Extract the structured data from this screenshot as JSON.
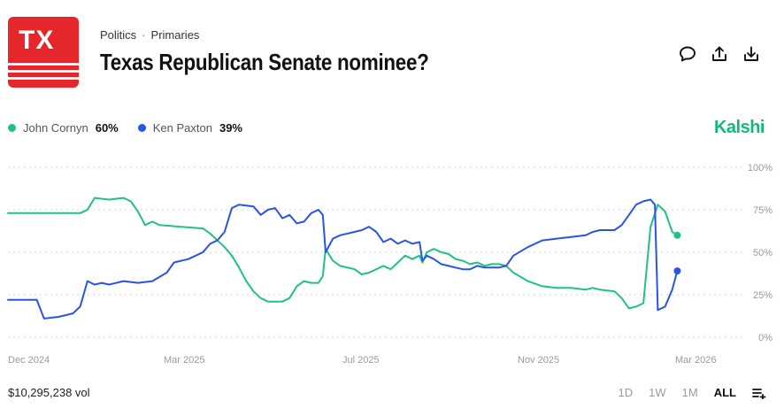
{
  "header": {
    "logo_text": "TX",
    "breadcrumb": [
      "Politics",
      "Primaries"
    ],
    "title": "Texas Republican Senate nominee?"
  },
  "actions": [
    {
      "name": "comment-icon"
    },
    {
      "name": "share-icon"
    },
    {
      "name": "download-icon"
    }
  ],
  "brand": "Kalshi",
  "footer": {
    "volume": "$10,295,238 vol",
    "ranges": [
      "1D",
      "1W",
      "1M",
      "ALL"
    ],
    "active_range": "ALL"
  },
  "chart_data": {
    "type": "line",
    "xlabels": [
      "Dec 2024",
      "Mar 2025",
      "Jul 2025",
      "Nov 2025",
      "Mar 2026"
    ],
    "y_ticks": [
      "100%",
      "75%",
      "50%",
      "25%",
      "0%"
    ],
    "ylim": [
      0,
      100
    ],
    "grid": true,
    "legend_position": "top-left",
    "series": [
      {
        "name": "John Cornyn",
        "label": "60%",
        "color": "#1fc283",
        "points": [
          [
            0,
            73
          ],
          [
            10,
            73
          ],
          [
            11,
            75
          ],
          [
            12,
            82
          ],
          [
            14,
            81
          ],
          [
            16,
            82
          ],
          [
            17,
            80
          ],
          [
            18,
            74
          ],
          [
            19,
            66
          ],
          [
            20,
            68
          ],
          [
            21,
            66
          ],
          [
            24,
            65
          ],
          [
            27,
            64
          ],
          [
            28,
            61
          ],
          [
            30,
            53
          ],
          [
            31,
            48
          ],
          [
            32,
            41
          ],
          [
            33,
            33
          ],
          [
            34,
            27
          ],
          [
            35,
            23
          ],
          [
            36,
            21
          ],
          [
            38,
            21
          ],
          [
            39,
            23
          ],
          [
            40,
            30
          ],
          [
            41,
            33
          ],
          [
            42,
            32
          ],
          [
            43,
            32
          ],
          [
            43.6,
            36
          ],
          [
            44,
            52
          ],
          [
            45,
            45
          ],
          [
            46,
            42
          ],
          [
            48,
            40
          ],
          [
            49,
            37
          ],
          [
            50,
            38
          ],
          [
            51,
            40
          ],
          [
            52,
            42
          ],
          [
            53,
            40
          ],
          [
            54,
            44
          ],
          [
            55,
            48
          ],
          [
            56,
            46
          ],
          [
            57,
            48
          ],
          [
            57.4,
            44
          ],
          [
            58,
            50
          ],
          [
            59,
            52
          ],
          [
            60,
            50
          ],
          [
            61,
            49
          ],
          [
            62,
            46
          ],
          [
            63,
            45
          ],
          [
            64,
            43
          ],
          [
            65,
            44
          ],
          [
            66,
            42
          ],
          [
            67,
            43
          ],
          [
            68,
            43
          ],
          [
            69,
            42
          ],
          [
            70,
            38
          ],
          [
            72,
            33
          ],
          [
            74,
            30
          ],
          [
            76,
            29
          ],
          [
            78,
            29
          ],
          [
            80,
            28
          ],
          [
            81,
            29
          ],
          [
            82,
            28
          ],
          [
            84,
            27
          ],
          [
            85,
            23
          ],
          [
            86,
            17
          ],
          [
            87,
            18
          ],
          [
            88,
            20
          ],
          [
            89,
            65
          ],
          [
            90,
            78
          ],
          [
            91,
            74
          ],
          [
            92,
            62
          ],
          [
            92.7,
            60
          ]
        ]
      },
      {
        "name": "Ken Paxton",
        "label": "39%",
        "color": "#2b53e6",
        "points": [
          [
            0,
            22
          ],
          [
            3,
            22
          ],
          [
            4,
            22
          ],
          [
            5,
            11
          ],
          [
            7,
            12
          ],
          [
            9,
            14
          ],
          [
            10,
            18
          ],
          [
            11,
            33
          ],
          [
            12,
            31
          ],
          [
            13,
            32
          ],
          [
            14,
            31
          ],
          [
            16,
            33
          ],
          [
            18,
            32
          ],
          [
            20,
            33
          ],
          [
            22,
            38
          ],
          [
            23,
            44
          ],
          [
            25,
            46
          ],
          [
            26,
            48
          ],
          [
            27,
            50
          ],
          [
            28,
            55
          ],
          [
            29,
            57
          ],
          [
            30,
            62
          ],
          [
            31,
            76
          ],
          [
            32,
            78
          ],
          [
            34,
            77
          ],
          [
            35,
            72
          ],
          [
            36,
            75
          ],
          [
            37,
            76
          ],
          [
            38,
            70
          ],
          [
            39,
            72
          ],
          [
            40,
            67
          ],
          [
            41,
            68
          ],
          [
            42,
            73
          ],
          [
            43,
            75
          ],
          [
            43.6,
            72
          ],
          [
            44,
            50
          ],
          [
            45,
            58
          ],
          [
            46,
            60
          ],
          [
            48,
            62
          ],
          [
            49,
            63
          ],
          [
            50,
            65
          ],
          [
            51,
            62
          ],
          [
            52,
            56
          ],
          [
            53,
            58
          ],
          [
            54,
            55
          ],
          [
            55,
            57
          ],
          [
            56,
            55
          ],
          [
            57,
            56
          ],
          [
            57.4,
            45
          ],
          [
            58,
            48
          ],
          [
            59,
            46
          ],
          [
            60,
            43
          ],
          [
            61,
            42
          ],
          [
            62,
            41
          ],
          [
            63,
            40
          ],
          [
            64,
            40
          ],
          [
            65,
            42
          ],
          [
            66,
            41
          ],
          [
            67,
            41
          ],
          [
            68,
            41
          ],
          [
            69,
            42
          ],
          [
            70,
            48
          ],
          [
            72,
            53
          ],
          [
            74,
            57
          ],
          [
            76,
            58
          ],
          [
            78,
            59
          ],
          [
            80,
            60
          ],
          [
            81,
            62
          ],
          [
            82,
            63
          ],
          [
            84,
            63
          ],
          [
            85,
            66
          ],
          [
            86,
            72
          ],
          [
            87,
            78
          ],
          [
            88,
            80
          ],
          [
            89,
            81
          ],
          [
            89.6,
            78
          ],
          [
            90,
            16
          ],
          [
            91,
            18
          ],
          [
            92,
            28
          ],
          [
            92.7,
            39
          ]
        ]
      }
    ]
  }
}
